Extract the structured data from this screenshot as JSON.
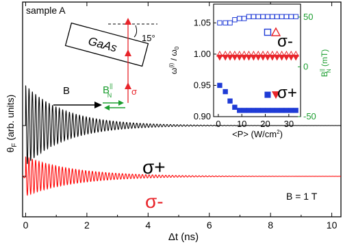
{
  "chart_data": [
    {
      "type": "line",
      "xlabel": "Δt (ns)",
      "ylabel": "θF (arb. units)",
      "ylabel_main": "θ",
      "ylabel_sub": "F",
      "ylabel_rest": " (arb. units)",
      "xlim": [
        -0.1,
        10.3
      ],
      "x_ticks": [
        0,
        2,
        4,
        6,
        8,
        10
      ],
      "series": [
        {
          "name": "σ+",
          "color": "#000000",
          "offset": 1,
          "amplitude": 0.9,
          "period_ns": 0.11,
          "decay_ns": 1.3,
          "start_ns": -0.1,
          "pump_ns": 0.0
        },
        {
          "name": "σ-",
          "color": "#ff0000",
          "offset": 0,
          "amplitude": 0.55,
          "period_ns": 0.109,
          "decay_ns": 1.6,
          "start_ns": -0.1,
          "pump_ns": 0.0
        }
      ],
      "annotations": {
        "sample": "sample A",
        "field": "B = 1 T",
        "sigma_plus": "σ+",
        "sigma_minus": "σ-",
        "schematic": {
          "crystal": "GaAs",
          "angle": "15°",
          "b_label": "B",
          "bn_main": "B",
          "bn_sup": "||",
          "bn_sub": "N",
          "sigma": "σ"
        }
      }
    },
    {
      "type": "scatter",
      "xlabel": "<P> (W/cm²)",
      "xlabel_main": "<P> (W/cm",
      "xlabel_sup": "2",
      "xlabel_end": ")",
      "ylabel": "ω(i)/ω0",
      "ylabel_main": "ω",
      "ylabel_sup": "(i)",
      "ylabel_mid": " / ω",
      "ylabel_sub": "0",
      "y2label": "B||N (mT)",
      "y2label_main": "B",
      "y2label_sup": "||",
      "y2label_sub": "N",
      "y2label_rest": " (mT)",
      "xlim": [
        -2,
        35
      ],
      "ylim": [
        0.9,
        1.08
      ],
      "y2lim": [
        -50,
        63
      ],
      "x_ticks": [
        0,
        10,
        20,
        30
      ],
      "y_ticks": [
        0.9,
        0.95,
        1.0,
        1.05
      ],
      "y_tick_labels": [
        "0.90",
        "0.95",
        "1.00",
        "1.05"
      ],
      "y2_ticks": [
        -50,
        0,
        50
      ],
      "y2_tick_labels": [
        "-50",
        "0",
        "50"
      ],
      "labels": {
        "sigma_minus": "σ-",
        "sigma_plus": "σ+"
      },
      "series": [
        {
          "name": "σ- ω(1)/ω0",
          "marker": "square-open",
          "color": "#1f3bd6",
          "x": [
            0.6,
            3,
            5,
            7,
            9,
            11,
            13,
            15,
            17,
            19,
            21,
            23,
            25,
            27,
            29,
            31,
            33
          ],
          "y": [
            1.05,
            1.05,
            1.05,
            1.055,
            1.057,
            1.057,
            1.06,
            1.06,
            1.06,
            1.06,
            1.06,
            1.06,
            1.06,
            1.06,
            1.06,
            1.06,
            1.06
          ]
        },
        {
          "name": "σ+ ω(1)/ω0",
          "marker": "square-filled",
          "color": "#1f3bd6",
          "x": [
            0.6,
            3,
            5,
            7,
            9,
            11,
            13,
            15,
            17,
            19,
            21,
            23,
            25,
            27,
            29,
            31,
            33
          ],
          "y": [
            0.95,
            0.94,
            0.925,
            0.915,
            0.91,
            0.91,
            0.91,
            0.91,
            0.91,
            0.91,
            0.91,
            0.91,
            0.91,
            0.91,
            0.91,
            0.91,
            0.91
          ]
        },
        {
          "name": "σ- ω(2)/ω0",
          "marker": "triangle-up-open",
          "color": "#e8242a",
          "x": [
            0.6,
            3,
            5,
            7,
            9,
            11,
            13,
            15,
            17,
            19,
            21,
            23,
            25,
            27,
            29,
            31,
            33
          ],
          "y": [
            1.0,
            1.0,
            1.0,
            1.0,
            1.0,
            1.0,
            1.0,
            1.0,
            1.0,
            1.0,
            1.0,
            1.0,
            1.0,
            1.0,
            1.0,
            1.0,
            1.0
          ]
        },
        {
          "name": "σ+ ω(2)/ω0",
          "marker": "triangle-down-filled",
          "color": "#e8242a",
          "x": [
            0.6,
            3,
            5,
            7,
            9,
            11,
            13,
            15,
            17,
            19,
            21,
            23,
            25,
            27,
            29,
            31,
            33
          ],
          "y": [
            0.995,
            0.995,
            0.995,
            0.995,
            0.995,
            0.995,
            0.995,
            0.995,
            0.995,
            0.995,
            0.995,
            0.995,
            0.995,
            0.995,
            0.995,
            0.995,
            0.995
          ]
        }
      ],
      "legend_markers": [
        {
          "marker": "square-open",
          "color": "#1f3bd6",
          "x": 21,
          "y": 1.035
        },
        {
          "marker": "triangle-up-open",
          "color": "#e8242a",
          "x": 24.5,
          "y": 1.035
        },
        {
          "marker": "square-filled",
          "color": "#1f3bd6",
          "x": 21,
          "y": 0.935
        },
        {
          "marker": "triangle-down-filled",
          "color": "#e8242a",
          "x": 24.5,
          "y": 0.935
        }
      ]
    }
  ]
}
